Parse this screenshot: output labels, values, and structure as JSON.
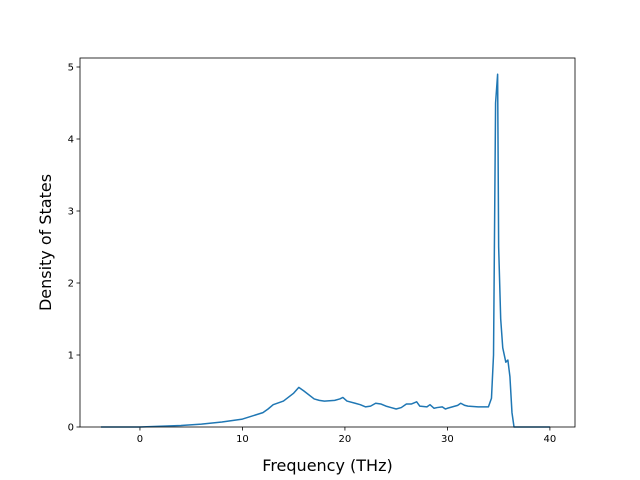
{
  "chart_data": {
    "type": "line",
    "xlabel": "Frequency (THz)",
    "ylabel": "Density of States",
    "xlim": [
      -5.85,
      42.45
    ],
    "ylim": [
      0,
      5.125
    ],
    "xticks": [
      0,
      10,
      20,
      30,
      40
    ],
    "yticks": [
      0,
      1,
      2,
      3,
      4,
      5
    ],
    "series": [
      {
        "color": "#1f77b4",
        "x": [
          -3.8,
          0,
          2,
          4,
          6,
          8,
          10,
          12,
          12.5,
          13,
          14,
          15,
          15.5,
          16,
          17,
          17.5,
          18,
          19,
          19.5,
          19.8,
          20.2,
          21,
          21.5,
          22,
          22.5,
          23,
          23.5,
          24,
          24.5,
          25,
          25.5,
          26,
          26.5,
          27,
          27.3,
          28,
          28.3,
          28.7,
          29,
          29.5,
          29.8,
          30,
          31,
          31.3,
          31.7,
          32,
          33,
          34,
          34.3,
          34.5,
          34.7,
          34.9,
          35,
          35.2,
          35.4,
          35.7,
          35.9,
          36.1,
          36.3,
          36.5,
          38,
          40
        ],
        "values": [
          0,
          0,
          0.01,
          0.02,
          0.04,
          0.07,
          0.11,
          0.2,
          0.25,
          0.31,
          0.36,
          0.47,
          0.55,
          0.5,
          0.39,
          0.37,
          0.36,
          0.37,
          0.39,
          0.41,
          0.36,
          0.33,
          0.31,
          0.28,
          0.29,
          0.33,
          0.32,
          0.29,
          0.27,
          0.25,
          0.27,
          0.32,
          0.32,
          0.35,
          0.29,
          0.28,
          0.31,
          0.26,
          0.27,
          0.28,
          0.25,
          0.26,
          0.3,
          0.33,
          0.3,
          0.29,
          0.28,
          0.28,
          0.4,
          1.0,
          4.5,
          4.9,
          2.5,
          1.5,
          1.1,
          0.9,
          0.93,
          0.7,
          0.2,
          0,
          0,
          0
        ]
      }
    ]
  }
}
